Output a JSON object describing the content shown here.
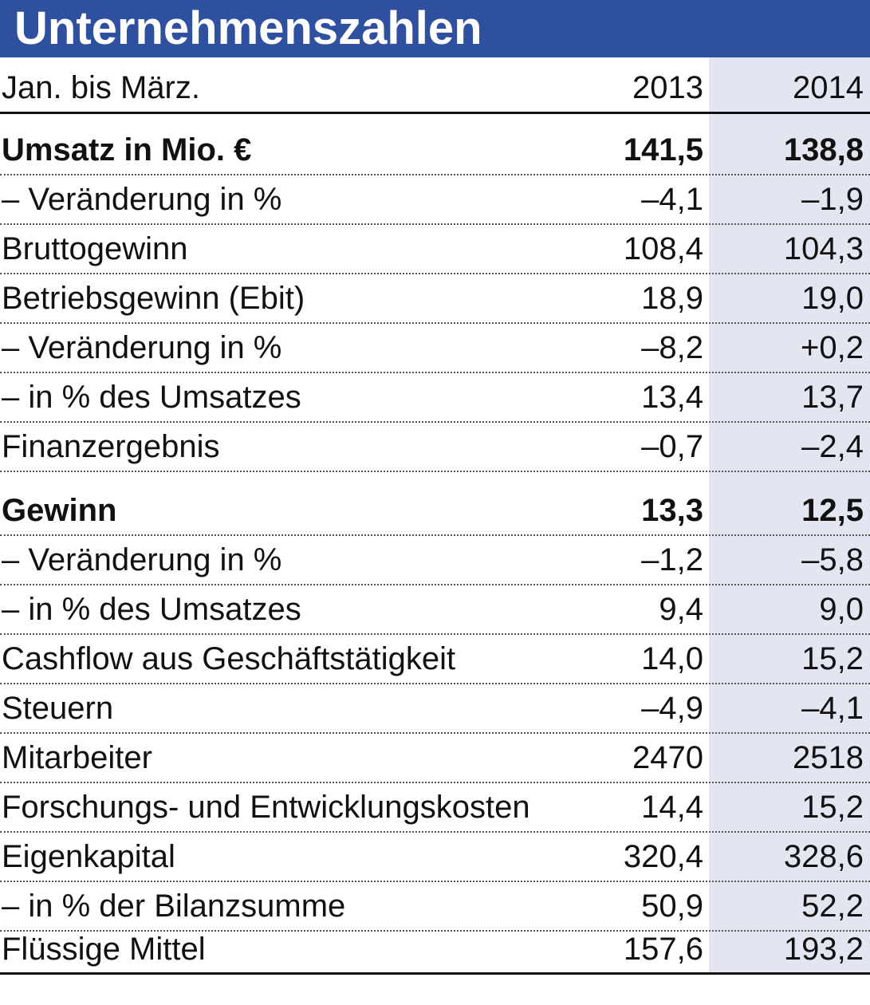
{
  "title": "Unternehmenszahlen",
  "header": {
    "label": "Jan. bis März.",
    "col1": "2013",
    "col2": "2014"
  },
  "colors": {
    "title_bar": "#2f4f9f",
    "shade": "#e3e5f1"
  },
  "rows": [
    {
      "label": "Umsatz in Mio. €",
      "v2013": "141,5",
      "v2014": "138,8",
      "bold": true
    },
    {
      "label": "– Veränderung in %",
      "v2013": "–4,1",
      "v2014": "–1,9"
    },
    {
      "label": "Bruttogewinn",
      "v2013": "108,4",
      "v2014": "104,3"
    },
    {
      "label": "Betriebsgewinn (Ebit)",
      "v2013": "18,9",
      "v2014": "19,0"
    },
    {
      "label": "– Veränderung in %",
      "v2013": "–8,2",
      "v2014": "+0,2"
    },
    {
      "label": "– in % des Umsatzes",
      "v2013": "13,4",
      "v2014": "13,7"
    },
    {
      "label": "Finanzergebnis",
      "v2013": "–0,7",
      "v2014": "–2,4"
    },
    {
      "label": "Gewinn",
      "v2013": "13,3",
      "v2014": "12,5",
      "bold": true
    },
    {
      "label": "– Veränderung in %",
      "v2013": "–1,2",
      "v2014": "–5,8"
    },
    {
      "label": "– in % des Umsatzes",
      "v2013": "9,4",
      "v2014": "9,0"
    },
    {
      "label": "Cashflow aus Geschäftstätigkeit",
      "v2013": "14,0",
      "v2014": "15,2"
    },
    {
      "label": "Steuern",
      "v2013": "–4,9",
      "v2014": "–4,1"
    },
    {
      "label": "Mitarbeiter",
      "v2013": "2470",
      "v2014": "2518"
    },
    {
      "label": "Forschungs- und Entwicklungskosten",
      "v2013": "14,4",
      "v2014": "15,2"
    },
    {
      "label": "Eigenkapital",
      "v2013": "320,4",
      "v2014": "328,6"
    },
    {
      "label": "– in % der Bilanzsumme",
      "v2013": "50,9",
      "v2014": "52,2"
    },
    {
      "label": "Flüssige Mittel",
      "v2013": "157,6",
      "v2014": "193,2"
    }
  ]
}
